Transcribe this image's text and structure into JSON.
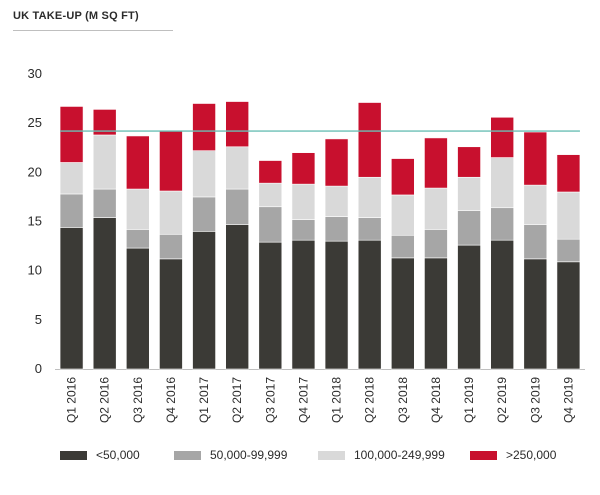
{
  "chart_data": {
    "type": "bar",
    "stacked": true,
    "title": "UK TAKE-UP (M SQ FT)",
    "xlabel": "",
    "ylabel": "",
    "ylim": [
      0,
      30
    ],
    "yticks": [
      0,
      5,
      10,
      15,
      20,
      25,
      30
    ],
    "grid": false,
    "legend_position": "bottom",
    "categories": [
      "Q1 2016",
      "Q2 2016",
      "Q3 2016",
      "Q4 2016",
      "Q1 2017",
      "Q2 2017",
      "Q3 2017",
      "Q4 2017",
      "Q1 2018",
      "Q2 2018",
      "Q3 2018",
      "Q4 2018",
      "Q1 2019",
      "Q2 2019",
      "Q3 2019",
      "Q4 2019"
    ],
    "series": [
      {
        "name": "<50,000",
        "color": "#3b3a36",
        "values": [
          14.4,
          15.4,
          12.3,
          11.2,
          14.0,
          14.7,
          12.9,
          13.1,
          13.0,
          13.1,
          11.3,
          11.3,
          12.6,
          13.1,
          11.2,
          10.9
        ]
      },
      {
        "name": "50,000-99,999",
        "color": "#a6a6a6",
        "values": [
          3.4,
          2.9,
          1.9,
          2.5,
          3.5,
          3.6,
          3.6,
          2.1,
          2.5,
          2.3,
          2.3,
          2.9,
          3.5,
          3.3,
          3.5,
          2.3
        ]
      },
      {
        "name": "100,000-249,999",
        "color": "#d9d9d9",
        "values": [
          3.2,
          5.5,
          4.1,
          4.4,
          4.7,
          4.3,
          2.4,
          3.6,
          3.1,
          4.1,
          4.1,
          4.2,
          3.4,
          5.1,
          4.0,
          4.8
        ]
      },
      {
        "name": ">250,000",
        "color": "#c8102e",
        "values": [
          5.7,
          2.6,
          5.4,
          6.1,
          4.8,
          4.6,
          2.3,
          3.2,
          4.8,
          7.6,
          3.7,
          5.1,
          3.1,
          4.1,
          5.4,
          3.8
        ]
      }
    ],
    "reference_line": {
      "value": 24.2,
      "color": "#6bbfb5"
    }
  },
  "legend": {
    "items": [
      {
        "label": "<50,000",
        "color": "#3b3a36"
      },
      {
        "label": "50,000-99,999",
        "color": "#a6a6a6"
      },
      {
        "label": "100,000-249,999",
        "color": "#d9d9d9"
      },
      {
        "label": ">250,000",
        "color": "#c8102e"
      }
    ]
  }
}
